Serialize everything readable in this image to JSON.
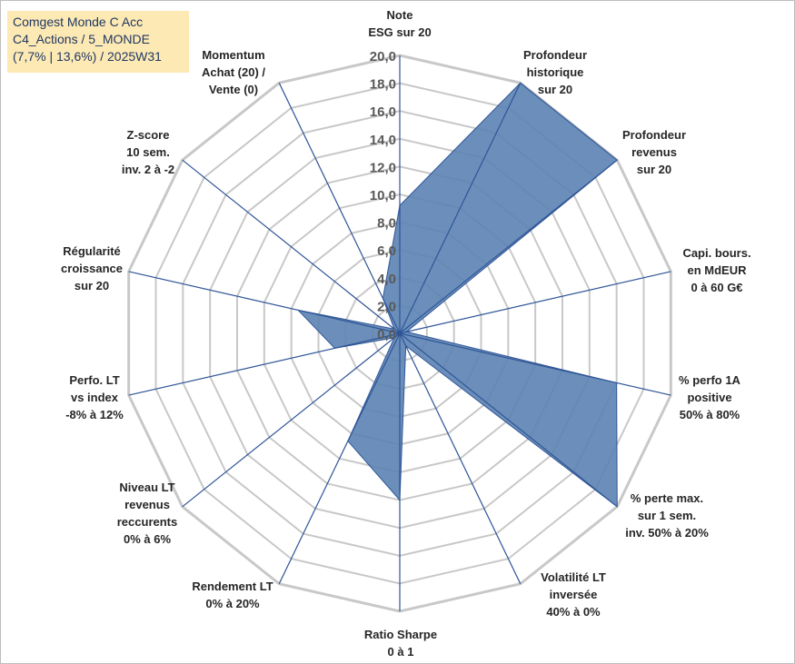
{
  "title_box": {
    "line1": "Comgest Monde C Acc",
    "line2": "C4_Actions / 5_MONDE",
    "line3": "(7,7% | 13,6%) / 2025W31"
  },
  "chart_data": {
    "type": "radar",
    "rmin": 0,
    "rmax": 20,
    "tick_step": 2,
    "tick_labels": [
      "0,0",
      "2,0",
      "4,0",
      "6,0",
      "8,0",
      "10,0",
      "12,0",
      "14,0",
      "16,0",
      "18,0",
      "20,0"
    ],
    "grid": true,
    "fill_color": "#5b83b3",
    "line_color": "#2f5597",
    "grid_color": "#c8c8c8",
    "axes": [
      {
        "label": [
          "Note",
          "ESG sur 20"
        ],
        "value": 9.2
      },
      {
        "label": [
          "Profondeur",
          "historique",
          "sur 20"
        ],
        "value": 20.0
      },
      {
        "label": [
          "Profondeur",
          "revenus",
          "sur 20"
        ],
        "value": 20.0
      },
      {
        "label": [
          "Capi. bours.",
          "en MdEUR",
          "0 à 60 G€"
        ],
        "value": 0.5
      },
      {
        "label": [
          "% perfo 1A",
          "positive",
          "50% à 80%"
        ],
        "value": 16.0
      },
      {
        "label": [
          "% perte max.",
          "sur 1 sem.",
          "inv. 50% à 20%"
        ],
        "value": 20.0
      },
      {
        "label": [
          "Volatilité LT",
          "inversée",
          "40% à 0%"
        ],
        "value": 1.0
      },
      {
        "label": [
          "Ratio Sharpe",
          "0 à 1"
        ],
        "value": 12.0
      },
      {
        "label": [
          "Rendement LT",
          "0% à 20%"
        ],
        "value": 8.6
      },
      {
        "label": [
          "Niveau LT",
          "revenus",
          "reccurents",
          "0% à 6%"
        ],
        "value": 0.5
      },
      {
        "label": [
          "Perfo. LT",
          "vs index",
          "-8% à 12%"
        ],
        "value": 4.8
      },
      {
        "label": [
          "Régularité",
          "croissance",
          "sur 20"
        ],
        "value": 7.5
      },
      {
        "label": [
          "Z-score",
          "10 sem.",
          "inv. 2 à -2"
        ],
        "value": 0.5
      },
      {
        "label": [
          "Momentum",
          "Achat (20) /",
          "Vente (0)"
        ],
        "value": 2.8
      }
    ]
  }
}
